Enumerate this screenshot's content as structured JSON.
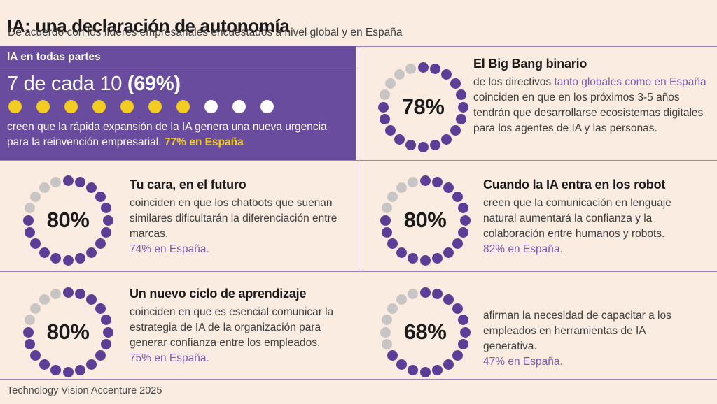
{
  "header": {
    "title": "IA: una declaración de autonomía",
    "subtitle": "De acuerdo con los líderes empresariales encuestados a nivel global y en España"
  },
  "hero": {
    "tag": "IA en todas partes",
    "stat_prefix": "7 de cada 10 ",
    "stat_bold": "(69%)",
    "dots_total": 10,
    "dots_filled": 7,
    "body": "creen que la rápida expansión de la IA genera una nueva urgencia para la reinvención empresarial. ",
    "highlight": "77% en España"
  },
  "sections": [
    {
      "pct": "78%",
      "dots_total": 20,
      "dots_filled": 16,
      "heading": "El Big Bang binario",
      "body_pre": "de los directivos ",
      "body_accent": "tanto globales como en España",
      "body_post": " coinciden en que en los próximos 3-5 años tendrán que desarrollarse ecosistemas digitales para los agentes de IA y las personas.",
      "spain": ""
    },
    {
      "pct": "80%",
      "dots_total": 20,
      "dots_filled": 16,
      "heading": "Tu cara, en el futuro",
      "body_pre": "coinciden en que los chatbots que suenan similares dificultarán la diferenciación entre marcas.",
      "body_accent": "",
      "body_post": "",
      "spain": "74% en España."
    },
    {
      "pct": "80%",
      "dots_total": 20,
      "dots_filled": 16,
      "heading": "Cuando la IA entra en los robot",
      "body_pre": "creen que la comunicación en lenguaje natural aumentará la confianza y la colaboración entre humanos y robots.",
      "body_accent": "",
      "body_post": "",
      "spain": "82% en España."
    },
    {
      "pct": "80%",
      "dots_total": 20,
      "dots_filled": 16,
      "heading": "Un nuevo ciclo de aprendizaje",
      "body_pre": "coinciden en que es esencial comunicar la estrategia de IA de la organización para generar confianza entre los empleados.",
      "body_accent": "",
      "body_post": "",
      "spain": "75% en España."
    },
    {
      "pct": "68%",
      "dots_total": 20,
      "dots_filled": 14,
      "heading": "",
      "body_pre": "afirman la necesidad de capacitar a los empleados en herramientas de IA generativa.",
      "body_accent": "",
      "body_post": "",
      "spain": "47% en España."
    }
  ],
  "footer": {
    "credit": "Technology Vision Accenture 2025"
  },
  "colors": {
    "background": "#fbece1",
    "hero_purple": "#6a4c9e",
    "dot_purple": "#5d3e97",
    "dot_gray": "#c7c6c5",
    "accent_yellow": "#f2cd1f",
    "gold_line": "#c4a235",
    "accent_purple": "#7a5bad",
    "divider_purple": "#9a7fb8",
    "text_ink": "#1a1a1a",
    "text_body": "#3c3c3c"
  },
  "chart_data": [
    {
      "type": "pie",
      "style": "dot-ring",
      "title": "IA en todas partes",
      "label": "7 de cada 10",
      "categories": [
        "Global",
        "España"
      ],
      "values": [
        69,
        77
      ],
      "dots_total": 10,
      "dots_filled": 7
    },
    {
      "type": "pie",
      "style": "dot-ring",
      "title": "El Big Bang binario",
      "categories": [
        "Global"
      ],
      "values": [
        78
      ],
      "dots_total": 20,
      "dots_filled": 16
    },
    {
      "type": "pie",
      "style": "dot-ring",
      "title": "Tu cara, en el futuro",
      "categories": [
        "Global",
        "España"
      ],
      "values": [
        80,
        74
      ],
      "dots_total": 20,
      "dots_filled": 16
    },
    {
      "type": "pie",
      "style": "dot-ring",
      "title": "Cuando la IA entra en los robot",
      "categories": [
        "Global",
        "España"
      ],
      "values": [
        80,
        82
      ],
      "dots_total": 20,
      "dots_filled": 16
    },
    {
      "type": "pie",
      "style": "dot-ring",
      "title": "Un nuevo ciclo de aprendizaje",
      "categories": [
        "Global",
        "España"
      ],
      "values": [
        80,
        75
      ],
      "dots_total": 20,
      "dots_filled": 16
    },
    {
      "type": "pie",
      "style": "dot-ring",
      "title": "",
      "categories": [
        "Global",
        "España"
      ],
      "values": [
        68,
        47
      ],
      "dots_total": 20,
      "dots_filled": 14
    }
  ]
}
